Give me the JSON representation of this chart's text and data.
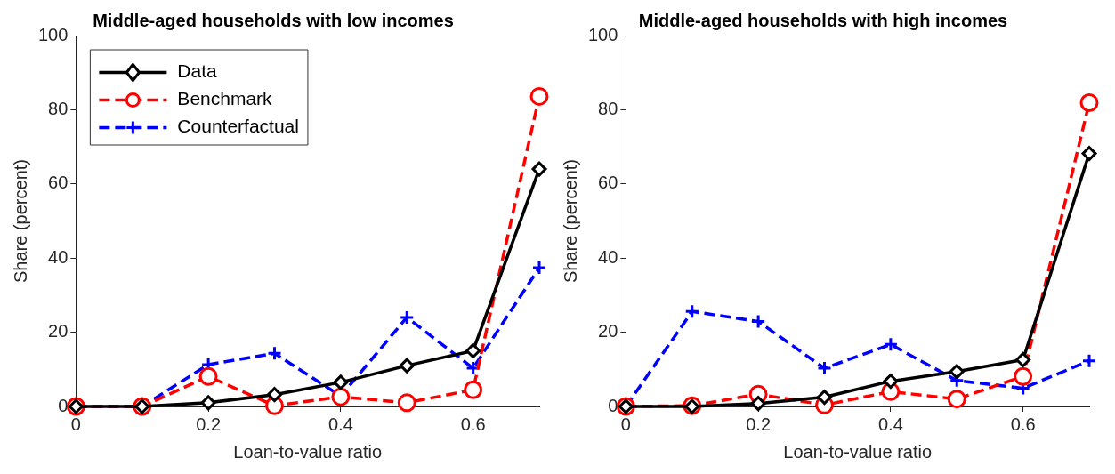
{
  "chart_data": [
    {
      "type": "line",
      "title": "Middle-aged households with low incomes",
      "xlabel": "Loan-to-value ratio",
      "ylabel": "Share (percent)",
      "x": [
        0,
        0.1,
        0.2,
        0.3,
        0.4,
        0.5,
        0.6,
        0.7
      ],
      "xlim": [
        0,
        0.7
      ],
      "xticks": [
        0,
        0.2,
        0.4,
        0.6
      ],
      "ylim": [
        0,
        100
      ],
      "yticks": [
        0,
        20,
        40,
        60,
        80,
        100
      ],
      "grid": false,
      "legend": "top left",
      "series": [
        {
          "name": "Data",
          "color": "#000000",
          "marker": "diamond",
          "line_style": "solid",
          "values": [
            0,
            0,
            1.0,
            3.2,
            6.5,
            11,
            15,
            64
          ]
        },
        {
          "name": "Benchmark",
          "color": "#ff0000",
          "marker": "circle",
          "line_style": "dashed",
          "values": [
            0,
            0,
            8.1,
            0.2,
            2.6,
            1,
            4.5,
            83.6
          ]
        },
        {
          "name": "Counterfactual",
          "color": "#0000ff",
          "marker": "cross",
          "line_style": "dashed",
          "values": [
            0,
            0,
            11.3,
            14.3,
            2.8,
            24,
            10.3,
            37.4
          ]
        }
      ]
    },
    {
      "type": "line",
      "title": "Middle-aged households with high incomes",
      "xlabel": "Loan-to-value ratio",
      "ylabel": "Share (percent)",
      "x": [
        0,
        0.1,
        0.2,
        0.3,
        0.4,
        0.5,
        0.6,
        0.7
      ],
      "xlim": [
        0,
        0.7
      ],
      "xticks": [
        0,
        0.2,
        0.4,
        0.6
      ],
      "ylim": [
        0,
        100
      ],
      "yticks": [
        0,
        20,
        40,
        60,
        80,
        100
      ],
      "grid": false,
      "legend": false,
      "series": [
        {
          "color": "#000000",
          "marker": "diamond",
          "line_style": "solid",
          "values": [
            0,
            0,
            0.8,
            2.5,
            6.8,
            9.4,
            12.6,
            68.2
          ]
        },
        {
          "color": "#ff0000",
          "marker": "circle",
          "line_style": "dashed",
          "values": [
            0,
            0.2,
            3.3,
            0.4,
            4.0,
            2.0,
            8.1,
            81.9
          ]
        },
        {
          "color": "#0000ff",
          "marker": "cross",
          "line_style": "dashed",
          "values": [
            0,
            25.6,
            22.9,
            10.3,
            16.7,
            7.0,
            4.9,
            12.3
          ]
        }
      ]
    }
  ]
}
